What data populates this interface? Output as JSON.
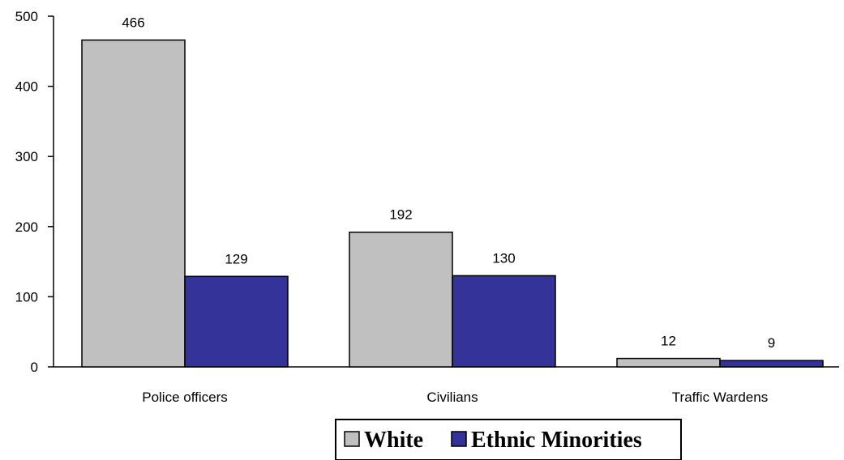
{
  "chart_data": {
    "type": "bar",
    "categories": [
      "Police officers",
      "Civilians",
      "Traffic Wardens"
    ],
    "series": [
      {
        "name": "White",
        "values": [
          466,
          192,
          12
        ],
        "color": "#c0c0c0"
      },
      {
        "name": "Ethnic Minorities",
        "values": [
          129,
          130,
          9
        ],
        "color": "#333399"
      }
    ],
    "title": "",
    "xlabel": "",
    "ylabel": "",
    "ylim": [
      0,
      500
    ],
    "yticks": [
      0,
      100,
      200,
      300,
      400,
      500
    ],
    "grid": false,
    "legend": "bottom",
    "data_labels": true
  }
}
